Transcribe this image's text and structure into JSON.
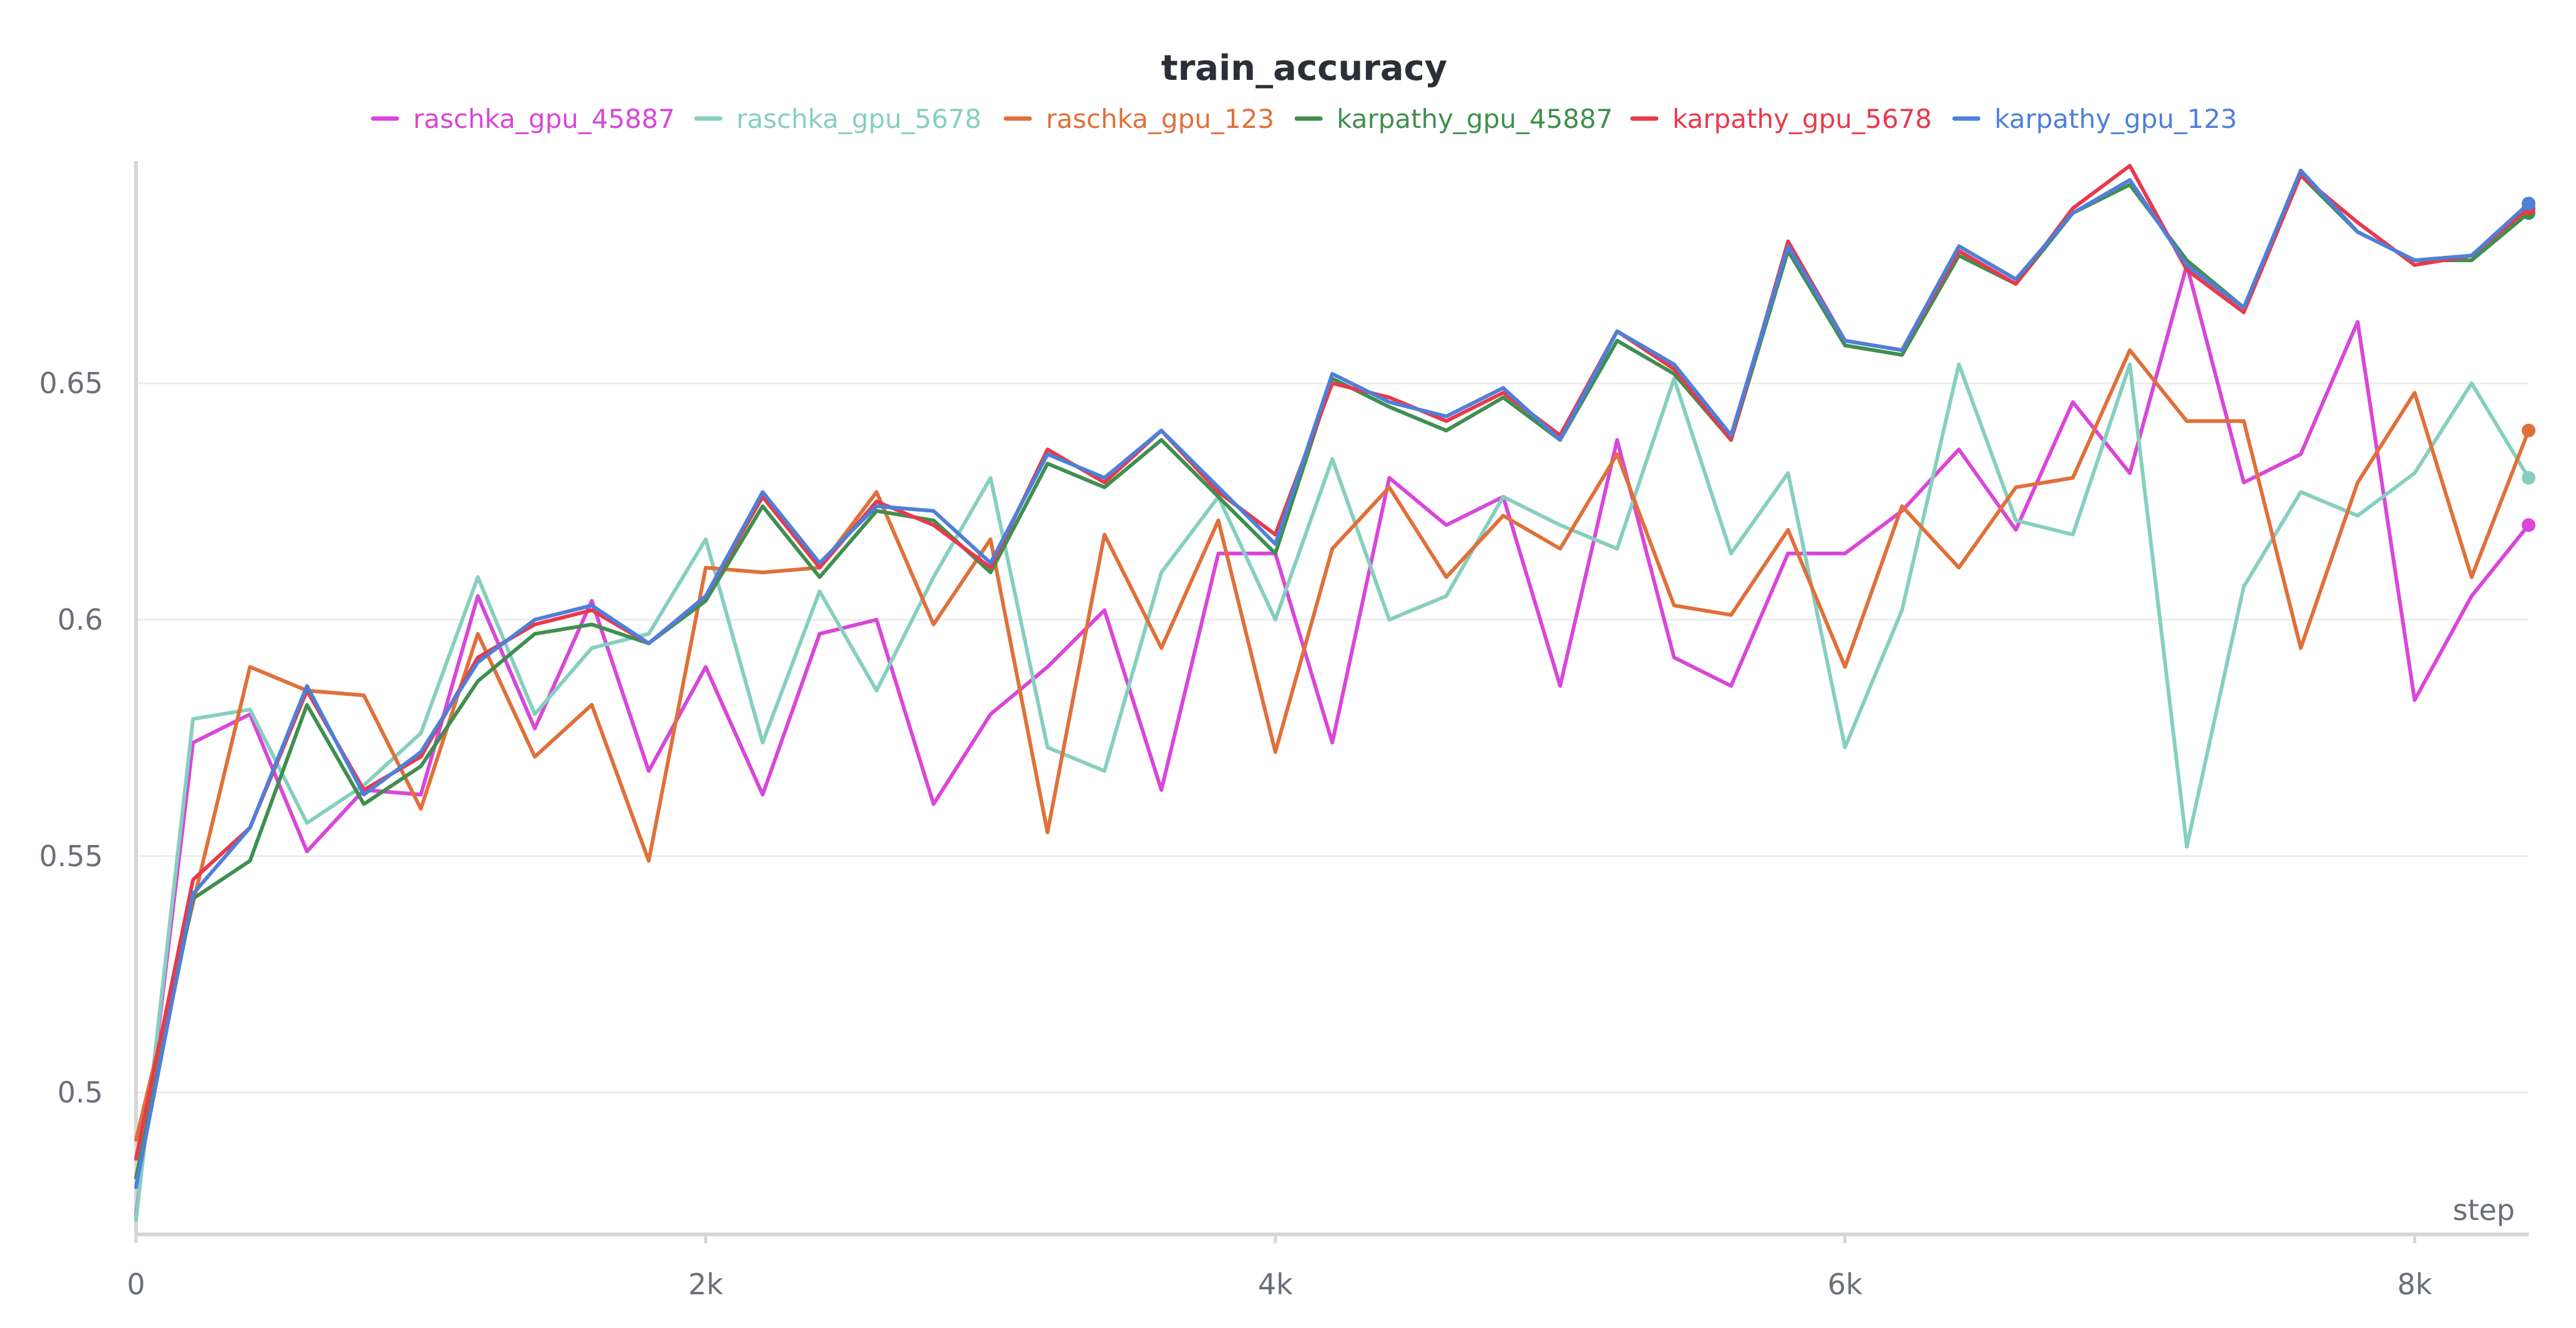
{
  "chart_data": {
    "type": "line",
    "title": "train_accuracy",
    "xlabel": "step",
    "ylabel": "",
    "xlim": [
      0,
      8400
    ],
    "ylim": [
      0.47,
      0.697
    ],
    "xticks": [
      0,
      2000,
      4000,
      6000,
      8000
    ],
    "xtick_labels": [
      "0",
      "2k",
      "4k",
      "6k",
      "8k"
    ],
    "yticks": [
      0.5,
      0.55,
      0.6,
      0.65
    ],
    "ytick_labels": [
      "0.5",
      "0.55",
      "0.6",
      "0.65"
    ],
    "grid": true,
    "legend_position": "top",
    "series": [
      {
        "name": "raschka_gpu_45887",
        "color": "#d946d9",
        "x": [
          0,
          200,
          400,
          600,
          800,
          1000,
          1200,
          1400,
          1600,
          1800,
          2000,
          2200,
          2400,
          2600,
          2800,
          3000,
          3200,
          3400,
          3600,
          3800,
          4000,
          4200,
          4400,
          4600,
          4800,
          5000,
          5200,
          5400,
          5600,
          5800,
          6000,
          6200,
          6400,
          6600,
          6800,
          7000,
          7200,
          7400,
          7600,
          7800,
          8000,
          8200,
          8400
        ],
        "values": [
          0.474,
          0.574,
          0.58,
          0.551,
          0.564,
          0.563,
          0.605,
          0.577,
          0.604,
          0.568,
          0.59,
          0.563,
          0.597,
          0.6,
          0.561,
          0.58,
          0.59,
          0.602,
          0.564,
          0.614,
          0.614,
          0.574,
          0.63,
          0.62,
          0.626,
          0.586,
          0.638,
          0.592,
          0.586,
          0.614,
          0.614,
          0.623,
          0.636,
          0.619,
          0.646,
          0.631,
          0.675,
          0.629,
          0.635,
          0.663,
          0.583,
          0.605,
          0.62
        ]
      },
      {
        "name": "raschka_gpu_5678",
        "color": "#86cfbf",
        "x": [
          0,
          200,
          400,
          600,
          800,
          1000,
          1200,
          1400,
          1600,
          1800,
          2000,
          2200,
          2400,
          2600,
          2800,
          3000,
          3200,
          3400,
          3600,
          3800,
          4000,
          4200,
          4400,
          4600,
          4800,
          5000,
          5200,
          5400,
          5600,
          5800,
          6000,
          6200,
          6400,
          6600,
          6800,
          7000,
          7200,
          7400,
          7600,
          7800,
          8000,
          8200,
          8400
        ],
        "values": [
          0.473,
          0.579,
          0.581,
          0.557,
          0.565,
          0.576,
          0.609,
          0.58,
          0.594,
          0.597,
          0.617,
          0.574,
          0.606,
          0.585,
          0.609,
          0.63,
          0.573,
          0.568,
          0.61,
          0.626,
          0.6,
          0.634,
          0.6,
          0.605,
          0.626,
          0.62,
          0.615,
          0.651,
          0.614,
          0.631,
          0.573,
          0.602,
          0.654,
          0.621,
          0.618,
          0.654,
          0.552,
          0.607,
          0.627,
          0.622,
          0.631,
          0.65,
          0.63
        ]
      },
      {
        "name": "raschka_gpu_123",
        "color": "#e0703a",
        "x": [
          0,
          200,
          400,
          600,
          800,
          1000,
          1200,
          1400,
          1600,
          1800,
          2000,
          2200,
          2400,
          2600,
          2800,
          3000,
          3200,
          3400,
          3600,
          3800,
          4000,
          4200,
          4400,
          4600,
          4800,
          5000,
          5200,
          5400,
          5600,
          5800,
          6000,
          6200,
          6400,
          6600,
          6800,
          7000,
          7200,
          7400,
          7600,
          7800,
          8000,
          8200,
          8400
        ],
        "values": [
          0.49,
          0.54,
          0.59,
          0.585,
          0.584,
          0.56,
          0.597,
          0.571,
          0.582,
          0.549,
          0.611,
          0.61,
          0.611,
          0.627,
          0.599,
          0.617,
          0.555,
          0.618,
          0.594,
          0.621,
          0.572,
          0.615,
          0.628,
          0.609,
          0.622,
          0.615,
          0.635,
          0.603,
          0.601,
          0.619,
          0.59,
          0.624,
          0.611,
          0.628,
          0.63,
          0.657,
          0.642,
          0.642,
          0.594,
          0.629,
          0.648,
          0.609,
          0.64
        ]
      },
      {
        "name": "karpathy_gpu_45887",
        "color": "#3f8f4f",
        "x": [
          0,
          200,
          400,
          600,
          800,
          1000,
          1200,
          1400,
          1600,
          1800,
          2000,
          2200,
          2400,
          2600,
          2800,
          3000,
          3200,
          3400,
          3600,
          3800,
          4000,
          4200,
          4400,
          4600,
          4800,
          5000,
          5200,
          5400,
          5600,
          5800,
          6000,
          6200,
          6400,
          6600,
          6800,
          7000,
          7200,
          7400,
          7600,
          7800,
          8000,
          8200,
          8400
        ],
        "values": [
          0.482,
          0.541,
          0.549,
          0.582,
          0.561,
          0.569,
          0.587,
          0.597,
          0.599,
          0.595,
          0.604,
          0.624,
          0.609,
          0.623,
          0.621,
          0.61,
          0.633,
          0.628,
          0.638,
          0.626,
          0.614,
          0.651,
          0.645,
          0.64,
          0.647,
          0.638,
          0.659,
          0.652,
          0.638,
          0.678,
          0.658,
          0.656,
          0.677,
          0.671,
          0.686,
          0.692,
          0.676,
          0.666,
          0.694,
          0.682,
          0.676,
          0.676,
          0.686
        ]
      },
      {
        "name": "karpathy_gpu_5678",
        "color": "#e8394b",
        "x": [
          0,
          200,
          400,
          600,
          800,
          1000,
          1200,
          1400,
          1600,
          1800,
          2000,
          2200,
          2400,
          2600,
          2800,
          3000,
          3200,
          3400,
          3600,
          3800,
          4000,
          4200,
          4400,
          4600,
          4800,
          5000,
          5200,
          5400,
          5600,
          5800,
          6000,
          6200,
          6400,
          6600,
          6800,
          7000,
          7200,
          7400,
          7600,
          7800,
          8000,
          8200,
          8400
        ],
        "values": [
          0.486,
          0.545,
          0.556,
          0.585,
          0.564,
          0.571,
          0.592,
          0.599,
          0.602,
          0.595,
          0.605,
          0.626,
          0.611,
          0.625,
          0.62,
          0.611,
          0.636,
          0.629,
          0.64,
          0.627,
          0.618,
          0.65,
          0.647,
          0.642,
          0.648,
          0.639,
          0.661,
          0.653,
          0.638,
          0.68,
          0.659,
          0.657,
          0.678,
          0.671,
          0.687,
          0.696,
          0.674,
          0.665,
          0.694,
          0.684,
          0.675,
          0.677,
          0.687
        ]
      },
      {
        "name": "karpathy_gpu_123",
        "color": "#4f7fd9",
        "x": [
          0,
          200,
          400,
          600,
          800,
          1000,
          1200,
          1400,
          1600,
          1800,
          2000,
          2200,
          2400,
          2600,
          2800,
          3000,
          3200,
          3400,
          3600,
          3800,
          4000,
          4200,
          4400,
          4600,
          4800,
          5000,
          5200,
          5400,
          5600,
          5800,
          6000,
          6200,
          6400,
          6600,
          6800,
          7000,
          7200,
          7400,
          7600,
          7800,
          8000,
          8200,
          8400
        ],
        "values": [
          0.48,
          0.542,
          0.556,
          0.586,
          0.563,
          0.572,
          0.591,
          0.6,
          0.603,
          0.595,
          0.605,
          0.627,
          0.612,
          0.624,
          0.623,
          0.612,
          0.635,
          0.63,
          0.64,
          0.628,
          0.616,
          0.652,
          0.646,
          0.643,
          0.649,
          0.638,
          0.661,
          0.654,
          0.639,
          0.679,
          0.659,
          0.657,
          0.679,
          0.672,
          0.686,
          0.693,
          0.675,
          0.666,
          0.695,
          0.682,
          0.676,
          0.677,
          0.688
        ]
      }
    ]
  }
}
